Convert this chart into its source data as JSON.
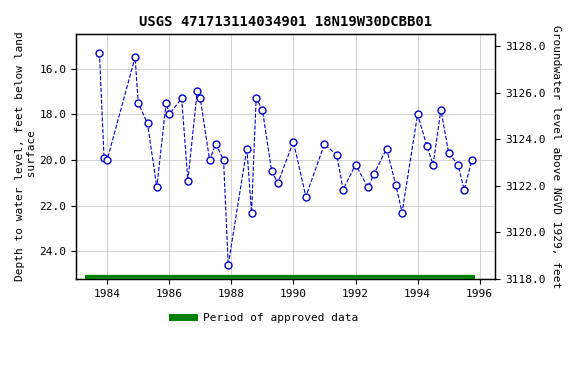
{
  "title": "USGS 471713114034901 18N19W30DCBB01",
  "xlabel_years": [
    1984,
    1986,
    1988,
    1990,
    1992,
    1994,
    1996
  ],
  "xlim": [
    1983.0,
    1996.5
  ],
  "ylim_left": [
    25.2,
    14.5
  ],
  "ylim_right": [
    3118.0,
    3128.5
  ],
  "yticks_left": [
    16.0,
    18.0,
    20.0,
    22.0,
    24.0
  ],
  "yticks_right": [
    3118.0,
    3120.0,
    3122.0,
    3124.0,
    3126.0,
    3128.0
  ],
  "ylabel_left": "Depth to water level, feet below land\n surface",
  "ylabel_right": "Groundwater level above NGVD 1929, feet",
  "data_x": [
    1983.75,
    1983.9,
    1984.0,
    1984.9,
    1985.0,
    1985.3,
    1985.6,
    1985.9,
    1986.0,
    1986.4,
    1986.6,
    1986.9,
    1987.0,
    1987.3,
    1987.5,
    1987.75,
    1987.9,
    1988.5,
    1988.65,
    1988.8,
    1989.0,
    1989.3,
    1989.5,
    1990.0,
    1990.4,
    1991.0,
    1991.4,
    1991.6,
    1992.0,
    1992.4,
    1992.6,
    1993.0,
    1993.3,
    1993.5,
    1994.0,
    1994.3,
    1994.5,
    1994.75,
    1995.0,
    1995.3,
    1995.5,
    1995.75
  ],
  "data_y": [
    15.3,
    19.9,
    20.0,
    15.5,
    17.5,
    18.4,
    21.2,
    17.5,
    18.0,
    17.3,
    20.9,
    17.0,
    17.3,
    20.0,
    19.3,
    20.0,
    24.6,
    19.5,
    22.3,
    17.3,
    17.8,
    20.5,
    21.0,
    19.2,
    21.6,
    19.3,
    19.8,
    21.3,
    20.2,
    21.2,
    20.6,
    19.5,
    21.1,
    22.3,
    18.0,
    19.4,
    20.2,
    17.8,
    19.7,
    20.2,
    21.3,
    20.0
  ],
  "approved_start": 1983.3,
  "approved_end": 1995.85,
  "line_color": "#0000CC",
  "marker_color": "#0000CC",
  "approved_color": "#008000",
  "background_color": "#ffffff",
  "grid_color": "#c0c0c0",
  "title_fontsize": 10,
  "label_fontsize": 8,
  "tick_fontsize": 8
}
